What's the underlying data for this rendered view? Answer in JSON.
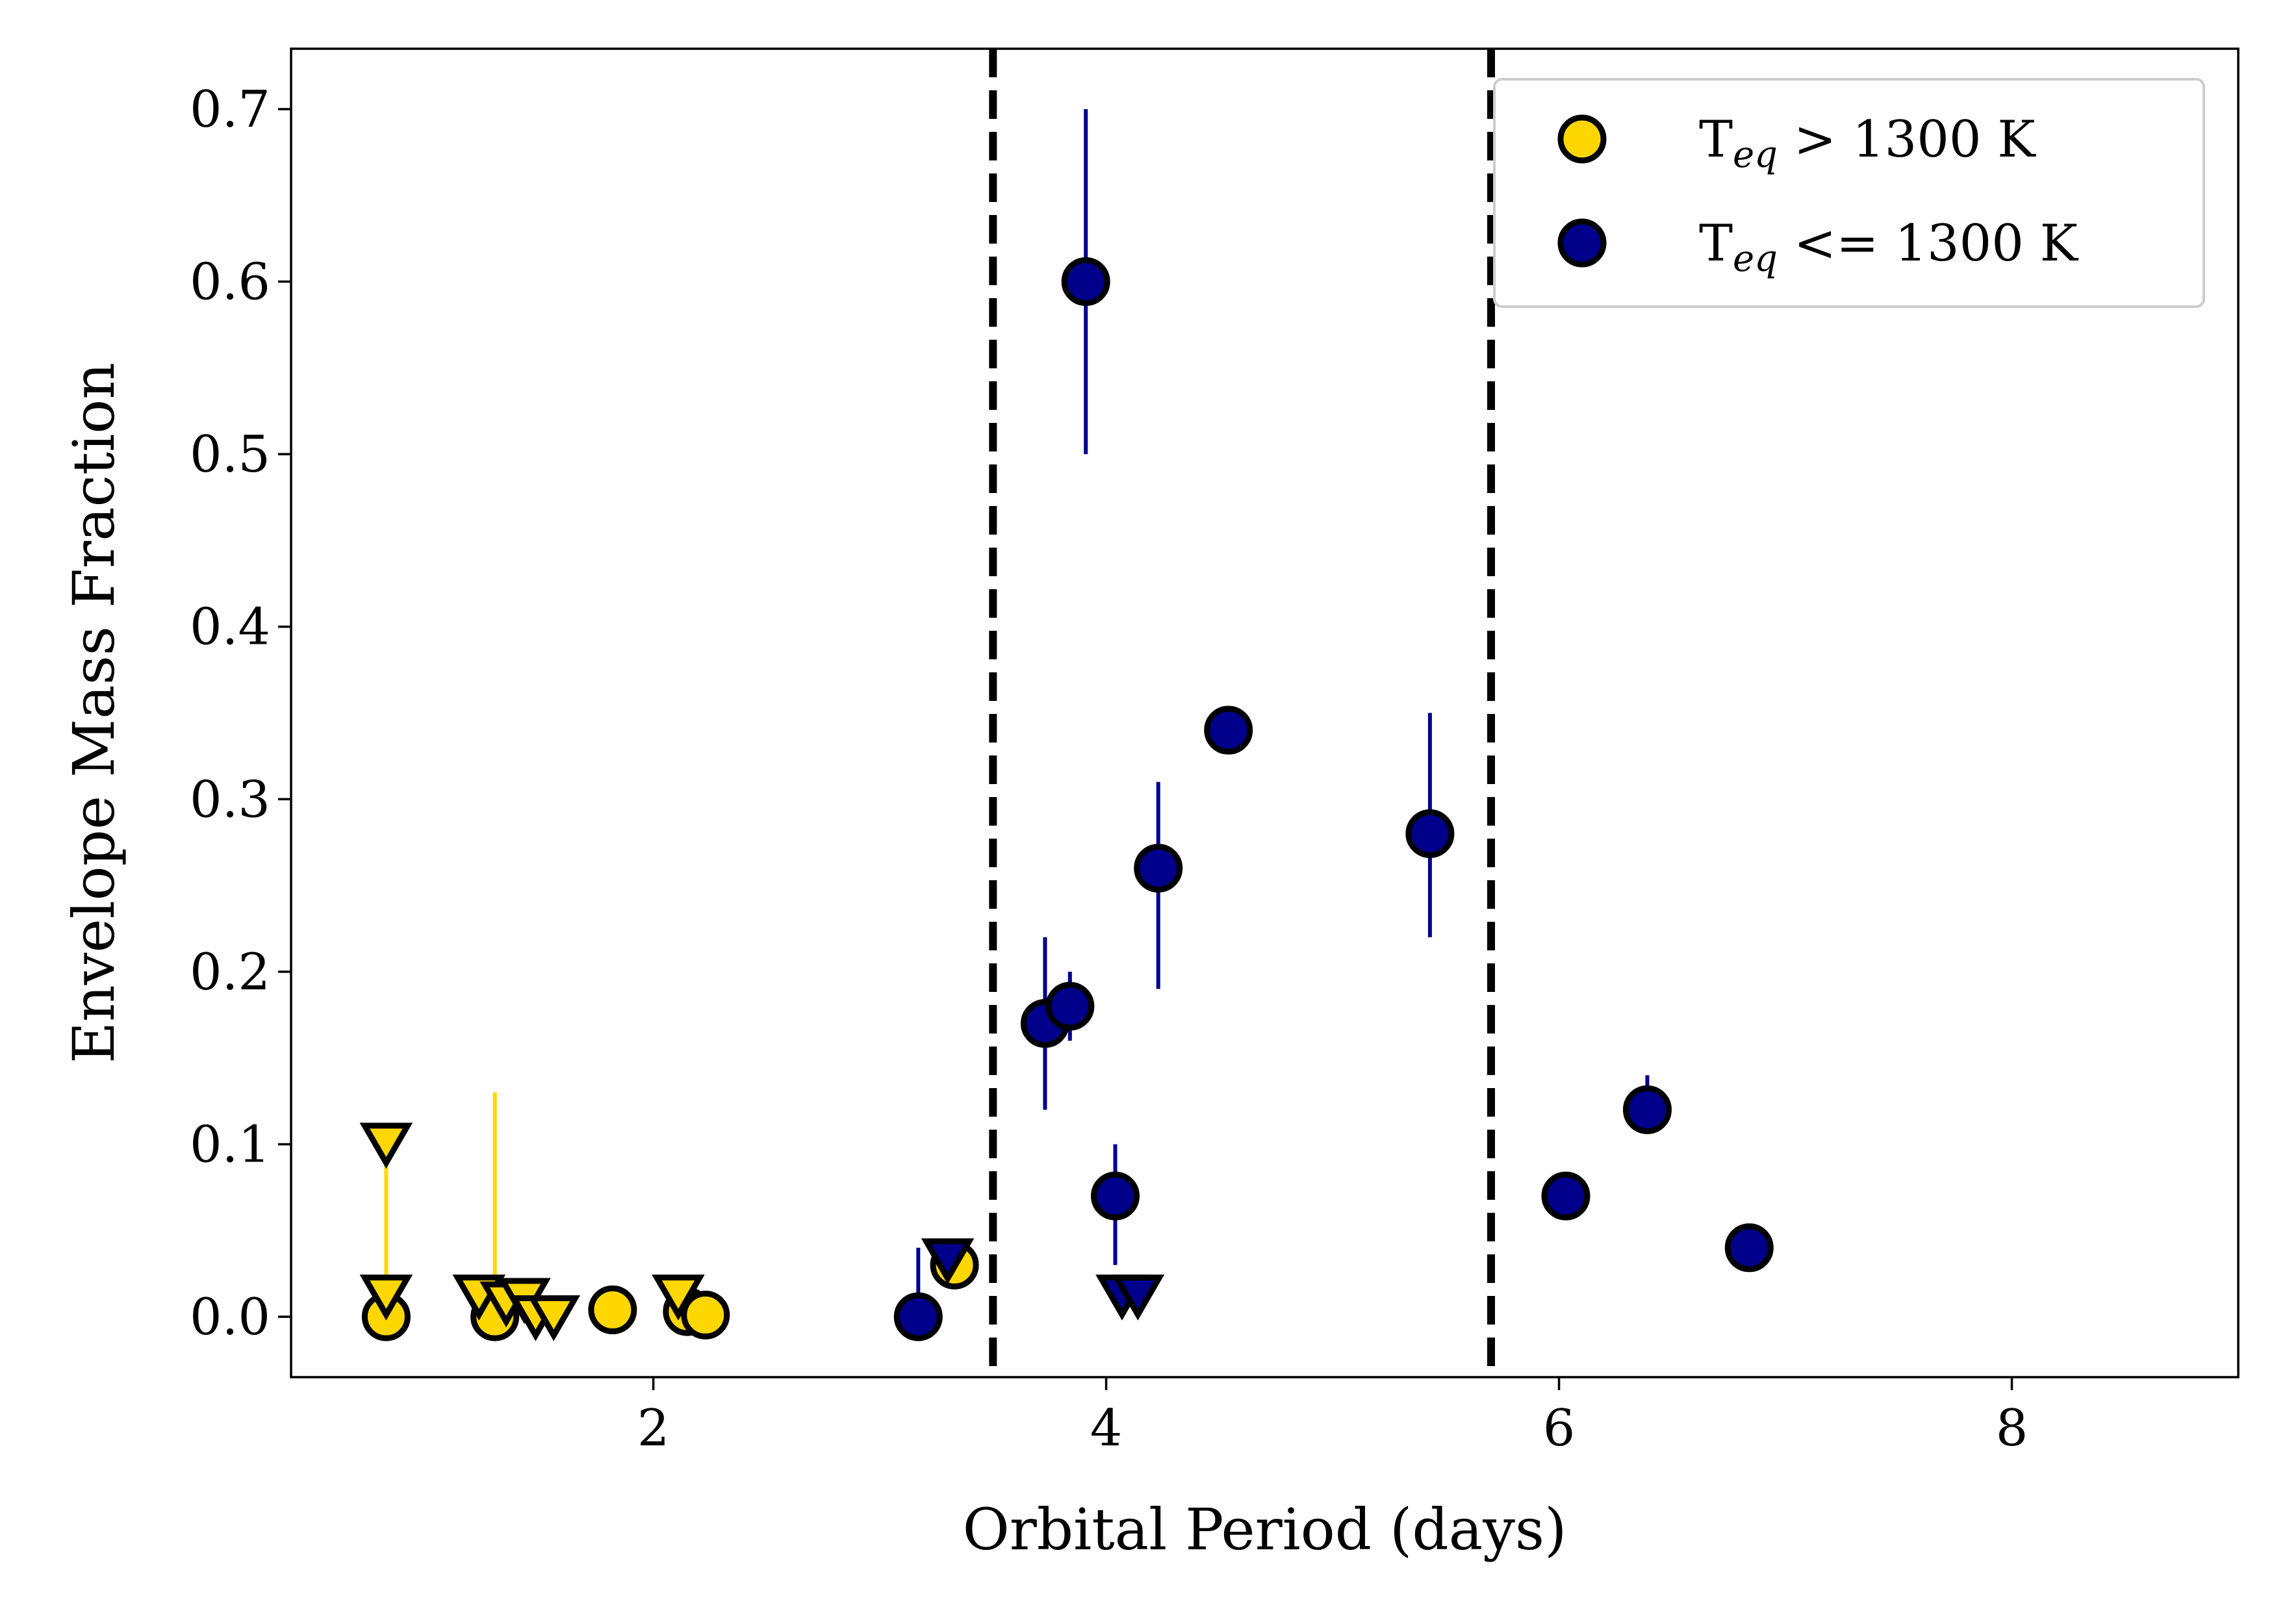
{
  "chart_data": {
    "type": "scatter",
    "title": "",
    "xlabel": "Orbital Period (days)",
    "ylabel": "Envelope Mass Fraction",
    "xlim": [
      0.4,
      9.0
    ],
    "ylim": [
      -0.035,
      0.735
    ],
    "xticks": [
      2,
      4,
      6,
      8
    ],
    "xtick_labels": [
      "2",
      "4",
      "6",
      "8"
    ],
    "yticks": [
      0.0,
      0.1,
      0.2,
      0.3,
      0.4,
      0.5,
      0.6,
      0.7
    ],
    "ytick_labels": [
      "0.0",
      "0.1",
      "0.2",
      "0.3",
      "0.4",
      "0.5",
      "0.6",
      "0.7"
    ],
    "vlines": [
      3.5,
      5.7
    ],
    "vline_style": "dashed",
    "grid": false,
    "legend_position": "top-right",
    "legend": [
      {
        "marker_color": "#FFD700",
        "label_prefix": "T",
        "label_sub": "eq",
        "label_suffix": " > 1300 K"
      },
      {
        "marker_color": "#00008B",
        "label_prefix": "T",
        "label_sub": "eq",
        "label_suffix": " <= 1300 K"
      }
    ],
    "series": [
      {
        "name": "Teq > 1300 K",
        "color": "#FFD700",
        "points": [
          {
            "x": 0.82,
            "y": 0.0,
            "marker": "circle"
          },
          {
            "x": 1.3,
            "y": 0.0,
            "marker": "circle",
            "yerr_up": 0.13
          },
          {
            "x": 1.82,
            "y": 0.004,
            "marker": "circle"
          },
          {
            "x": 2.15,
            "y": 0.003,
            "marker": "circle"
          },
          {
            "x": 2.23,
            "y": 0.001,
            "marker": "circle"
          },
          {
            "x": 3.33,
            "y": 0.03,
            "marker": "circle"
          }
        ],
        "upper_limits": [
          {
            "x": 0.82,
            "y": 0.1,
            "line_to": 0.0
          },
          {
            "x": 0.82,
            "y": 0.012
          },
          {
            "x": 1.23,
            "y": 0.012
          },
          {
            "x": 1.35,
            "y": 0.008
          },
          {
            "x": 1.43,
            "y": 0.01
          },
          {
            "x": 1.48,
            "y": 0.0
          },
          {
            "x": 1.56,
            "y": 0.0
          },
          {
            "x": 2.11,
            "y": 0.012
          }
        ]
      },
      {
        "name": "Teq <= 1300 K",
        "color": "#00008B",
        "points": [
          {
            "x": 3.17,
            "y": 0.0,
            "marker": "circle",
            "yerr_up": 0.04
          },
          {
            "x": 3.73,
            "y": 0.17,
            "marker": "circle",
            "yerr": [
              0.05,
              0.05
            ]
          },
          {
            "x": 3.84,
            "y": 0.18,
            "marker": "circle",
            "yerr": [
              0.02,
              0.02
            ]
          },
          {
            "x": 3.91,
            "y": 0.6,
            "marker": "circle",
            "yerr": [
              0.1,
              0.1
            ]
          },
          {
            "x": 4.04,
            "y": 0.07,
            "marker": "circle",
            "yerr": [
              0.04,
              0.03
            ]
          },
          {
            "x": 4.23,
            "y": 0.26,
            "marker": "circle",
            "yerr": [
              0.07,
              0.05
            ]
          },
          {
            "x": 4.54,
            "y": 0.34,
            "marker": "circle"
          },
          {
            "x": 5.43,
            "y": 0.28,
            "marker": "circle",
            "yerr": [
              0.06,
              0.07
            ]
          },
          {
            "x": 6.03,
            "y": 0.07,
            "marker": "circle"
          },
          {
            "x": 6.39,
            "y": 0.12,
            "marker": "circle",
            "yerr": [
              0.0,
              0.02
            ]
          },
          {
            "x": 6.84,
            "y": 0.04,
            "marker": "circle"
          }
        ],
        "upper_limits": [
          {
            "x": 3.3,
            "y": 0.033
          },
          {
            "x": 4.07,
            "y": 0.012
          },
          {
            "x": 4.14,
            "y": 0.012
          }
        ]
      }
    ]
  }
}
